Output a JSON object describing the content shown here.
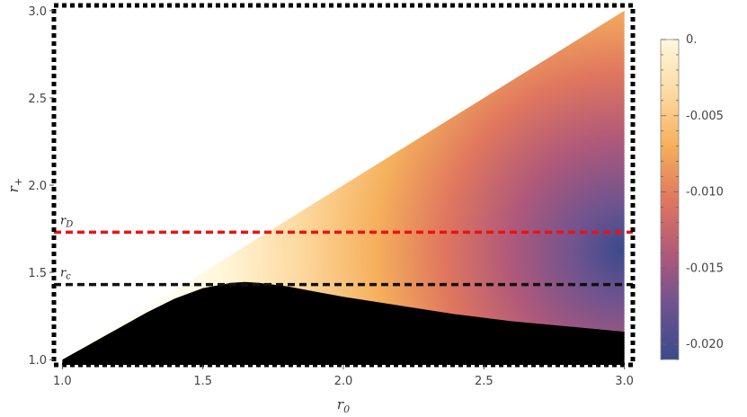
{
  "chart_data": {
    "type": "heatmap",
    "xlabel": "r0",
    "xlabel_main": "r",
    "xlabel_sub": "0",
    "ylabel": "r+",
    "ylabel_main": "r",
    "ylabel_sub": "+",
    "xlim": [
      0.97,
      3.03
    ],
    "ylim": [
      0.97,
      3.03
    ],
    "xticks": [
      {
        "value": 1.0,
        "label": "1.0"
      },
      {
        "value": 1.5,
        "label": "1.5"
      },
      {
        "value": 2.0,
        "label": "2.0"
      },
      {
        "value": 2.5,
        "label": "2.5"
      },
      {
        "value": 3.0,
        "label": "3.0"
      }
    ],
    "yticks": [
      {
        "value": 1.0,
        "label": "1.0"
      },
      {
        "value": 1.5,
        "label": "1.5"
      },
      {
        "value": 2.0,
        "label": "2.0"
      },
      {
        "value": 2.5,
        "label": "2.5"
      },
      {
        "value": 3.0,
        "label": "3.0"
      }
    ],
    "region_upper_boundary": "r+ = r0",
    "excluded_region_color": "#000000",
    "excluded_boundary": {
      "x": [
        1.0,
        1.1,
        1.2,
        1.3,
        1.4,
        1.5,
        1.6,
        1.65,
        1.7,
        1.8,
        1.9,
        2.0,
        2.2,
        2.4,
        2.6,
        2.8,
        3.0
      ],
      "y": [
        1.0,
        1.09,
        1.18,
        1.27,
        1.35,
        1.41,
        1.44,
        1.445,
        1.44,
        1.42,
        1.39,
        1.36,
        1.31,
        1.26,
        1.22,
        1.19,
        1.16
      ]
    },
    "reference_lines": [
      {
        "label_main": "r",
        "label_sub": "D",
        "y": 1.73,
        "color": "#ee1111",
        "style": "dashed"
      },
      {
        "label_main": "r",
        "label_sub": "c",
        "y": 1.43,
        "color": "#111111",
        "style": "dashed"
      }
    ],
    "colorbar": {
      "min": -0.021,
      "max": 0.0,
      "ticks": [
        {
          "value": 0.0,
          "label": "0."
        },
        {
          "value": -0.005,
          "label": "-0.005"
        },
        {
          "value": -0.01,
          "label": "-0.010"
        },
        {
          "value": -0.015,
          "label": "-0.015"
        },
        {
          "value": -0.02,
          "label": "-0.020"
        }
      ],
      "colors": [
        "#fff8dc",
        "#fdd9a0",
        "#f5b05c",
        "#e0775e",
        "#b0597a",
        "#6d5390",
        "#3b4a8a"
      ]
    },
    "field_minimum": {
      "x": 3.0,
      "y": 1.6,
      "value": -0.0205
    },
    "grid": false,
    "legend": "colorbar-right"
  }
}
